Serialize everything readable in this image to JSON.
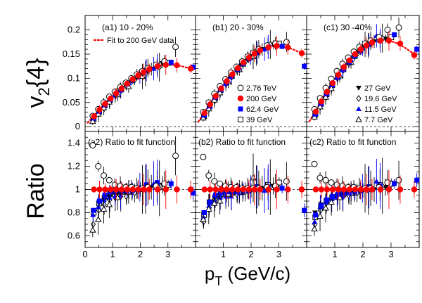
{
  "chart_data": {
    "type": "scatter",
    "x_label": "p",
    "x_label_sub": "T",
    "x_label_unit": " (GeV/c)",
    "x_range": [
      0,
      4.0
    ],
    "x_ticks": [
      0,
      1,
      2,
      3
    ],
    "top_ylabel": {
      "main": "v",
      "sub": "2",
      "tail": "{4}"
    },
    "bottom_ylabel": "Ratio",
    "top_ylim": [
      -0.01,
      0.23
    ],
    "top_yticks": [
      "0",
      "0.05",
      "0.1",
      "0.15",
      "0.2"
    ],
    "top_ytick_values": [
      0,
      0.05,
      0.1,
      0.15,
      0.2
    ],
    "bottom_ylim": [
      0.5,
      1.5
    ],
    "bottom_yticks": [
      "0.6",
      "0.8",
      "1",
      "1.2",
      "1.4"
    ],
    "bottom_ytick_values": [
      0.6,
      0.8,
      1.0,
      1.2,
      1.4
    ],
    "panels": [
      {
        "id": "a1",
        "label": "(a1) 10 - 20%",
        "row": "top",
        "col": 0,
        "fit_curve": {
          "x": [
            0.1,
            0.3,
            0.5,
            0.7,
            0.9,
            1.1,
            1.3,
            1.5,
            1.7,
            1.9,
            2.1,
            2.3,
            2.5,
            2.7,
            2.9,
            3.1,
            3.3,
            3.5,
            3.7,
            3.9
          ],
          "y": [
            0.008,
            0.022,
            0.035,
            0.047,
            0.058,
            0.069,
            0.079,
            0.089,
            0.098,
            0.106,
            0.113,
            0.119,
            0.124,
            0.127,
            0.128,
            0.128,
            0.127,
            0.125,
            0.122,
            0.119
          ]
        }
      },
      {
        "id": "b1",
        "label": "(b1) 20 - 30%",
        "row": "top",
        "col": 1,
        "fit_curve": {
          "x": [
            0.1,
            0.3,
            0.5,
            0.7,
            0.9,
            1.1,
            1.3,
            1.5,
            1.7,
            1.9,
            2.1,
            2.3,
            2.5,
            2.7,
            2.9,
            3.1,
            3.3,
            3.5,
            3.7,
            3.9
          ],
          "y": [
            0.01,
            0.028,
            0.046,
            0.063,
            0.079,
            0.094,
            0.108,
            0.121,
            0.133,
            0.143,
            0.151,
            0.158,
            0.163,
            0.166,
            0.167,
            0.166,
            0.164,
            0.16,
            0.155,
            0.15
          ]
        }
      },
      {
        "id": "c1",
        "label": "(c1) 30 -40%",
        "row": "top",
        "col": 2,
        "fit_curve": {
          "x": [
            0.1,
            0.3,
            0.5,
            0.7,
            0.9,
            1.1,
            1.3,
            1.5,
            1.7,
            1.9,
            2.1,
            2.3,
            2.5,
            2.7,
            2.9,
            3.1,
            3.3,
            3.5,
            3.7,
            3.9
          ],
          "y": [
            0.011,
            0.031,
            0.052,
            0.072,
            0.09,
            0.107,
            0.123,
            0.137,
            0.15,
            0.16,
            0.168,
            0.174,
            0.178,
            0.179,
            0.178,
            0.175,
            0.17,
            0.163,
            0.155,
            0.146
          ]
        }
      },
      {
        "id": "a2",
        "label": "(a2) Ratio to fit function",
        "row": "bottom",
        "col": 0
      },
      {
        "id": "b2",
        "label": "(b2) Ratio to fit function",
        "row": "bottom",
        "col": 1
      },
      {
        "id": "c2",
        "label": "(c2) Ratio to fit function",
        "row": "bottom",
        "col": 2
      }
    ],
    "legend_fit": "Fit to 200 GeV data",
    "legend_left": [
      {
        "name": "2.76 TeV",
        "marker": "open-circle",
        "color": "#000000"
      },
      {
        "name": "200 GeV",
        "marker": "filled-circle",
        "color": "#ff0000"
      },
      {
        "name": "62.4 GeV",
        "marker": "filled-square",
        "color": "#0000ff"
      },
      {
        "name": "39 GeV",
        "marker": "open-square",
        "color": "#000000"
      }
    ],
    "legend_right": [
      {
        "name": "27 GeV",
        "marker": "filled-triangle-down",
        "color": "#000000"
      },
      {
        "name": "19.6 GeV",
        "marker": "open-diamond",
        "color": "#000000"
      },
      {
        "name": "11.5 GeV",
        "marker": "filled-triangle-up",
        "color": "#0000ff"
      },
      {
        "name": "7.7 GeV",
        "marker": "open-triangle-up",
        "color": "#000000"
      }
    ],
    "series": [
      {
        "name": "2.76 TeV",
        "marker": "open-circle",
        "color": "#000000",
        "x": [
          0.3,
          0.5,
          0.7,
          0.9,
          1.1,
          1.3,
          1.5,
          1.7,
          1.9,
          2.1,
          2.3,
          2.6,
          2.9,
          3.3
        ]
      },
      {
        "name": "200 GeV",
        "marker": "filled-circle",
        "color": "#ff0000",
        "x": [
          0.3,
          0.5,
          0.7,
          0.9,
          1.1,
          1.3,
          1.5,
          1.7,
          1.9,
          2.1,
          2.3,
          2.6,
          2.9,
          3.3,
          3.8
        ]
      },
      {
        "name": "62.4 GeV",
        "marker": "filled-square",
        "color": "#0000ff",
        "x": [
          0.3,
          0.5,
          0.7,
          0.9,
          1.1,
          1.3,
          1.5,
          1.7,
          1.9,
          2.2,
          2.6,
          3.1,
          3.9
        ]
      },
      {
        "name": "39 GeV",
        "marker": "open-square",
        "color": "#000000",
        "x": [
          0.3,
          0.5,
          0.7,
          0.9,
          1.1,
          1.3,
          1.5,
          1.7,
          1.9,
          2.2,
          2.6,
          3.0
        ]
      },
      {
        "name": "27 GeV",
        "marker": "filled-triangle-down",
        "color": "#000000",
        "x": [
          0.3,
          0.5,
          0.7,
          0.9,
          1.1,
          1.3,
          1.5,
          1.7,
          2.0,
          2.4,
          2.8
        ]
      },
      {
        "name": "19.6 GeV",
        "marker": "open-diamond",
        "color": "#000000",
        "x": [
          0.3,
          0.5,
          0.7,
          0.9,
          1.1,
          1.3,
          1.5,
          1.8,
          2.2,
          2.7
        ]
      },
      {
        "name": "11.5 GeV",
        "marker": "filled-triangle-up",
        "color": "#0000ff",
        "x": [
          0.3,
          0.5,
          0.7,
          0.9,
          1.1,
          1.3,
          1.6,
          2.0,
          2.5
        ]
      },
      {
        "name": "7.7 GeV",
        "marker": "open-triangle-up",
        "color": "#000000",
        "x": [
          0.3,
          0.5,
          0.7,
          0.9,
          1.2,
          1.6,
          2.1
        ]
      }
    ],
    "values_top": {
      "a1": {
        "2.76 TeV": [
          0.022,
          0.036,
          0.05,
          0.062,
          0.072,
          0.082,
          0.091,
          0.1,
          0.108,
          0.115,
          0.121,
          0.128,
          0.135,
          0.165
        ],
        "200 GeV": [
          0.021,
          0.035,
          0.047,
          0.058,
          0.069,
          0.079,
          0.089,
          0.098,
          0.106,
          0.113,
          0.119,
          0.125,
          0.128,
          0.127,
          0.12
        ],
        "62.4 GeV": [
          0.018,
          0.032,
          0.045,
          0.057,
          0.068,
          0.078,
          0.088,
          0.097,
          0.106,
          0.117,
          0.126,
          0.133,
          0.123
        ],
        "39 GeV": [
          0.016,
          0.031,
          0.044,
          0.056,
          0.067,
          0.077,
          0.087,
          0.096,
          0.105,
          0.116,
          0.125,
          0.132
        ],
        "27 GeV": [
          0.017,
          0.031,
          0.043,
          0.055,
          0.066,
          0.076,
          0.086,
          0.096,
          0.108,
          0.119,
          0.131
        ],
        "19.6 GeV": [
          0.014,
          0.029,
          0.041,
          0.053,
          0.064,
          0.074,
          0.084,
          0.096,
          0.11,
          0.123
        ],
        "11.5 GeV": [
          0.016,
          0.03,
          0.043,
          0.054,
          0.065,
          0.075,
          0.09,
          0.104,
          0.12
        ],
        "7.7 GeV": [
          0.011,
          0.026,
          0.039,
          0.051,
          0.066,
          0.083,
          0.104
        ]
      },
      "b1": {
        "2.76 TeV": [
          0.03,
          0.05,
          0.068,
          0.084,
          0.098,
          0.112,
          0.124,
          0.135,
          0.145,
          0.153,
          0.16,
          0.168,
          0.172,
          0.175
        ],
        "200 GeV": [
          0.028,
          0.046,
          0.063,
          0.079,
          0.094,
          0.108,
          0.121,
          0.133,
          0.143,
          0.151,
          0.158,
          0.164,
          0.167,
          0.164,
          0.152
        ],
        "62.4 GeV": [
          0.024,
          0.043,
          0.061,
          0.077,
          0.092,
          0.106,
          0.119,
          0.131,
          0.141,
          0.153,
          0.165,
          0.166,
          0.125
        ],
        "39 GeV": [
          0.022,
          0.042,
          0.059,
          0.076,
          0.091,
          0.105,
          0.118,
          0.13,
          0.141,
          0.155,
          0.167,
          0.172
        ],
        "27 GeV": [
          0.024,
          0.042,
          0.059,
          0.075,
          0.09,
          0.104,
          0.117,
          0.129,
          0.145,
          0.16,
          0.17
        ],
        "19.6 GeV": [
          0.02,
          0.039,
          0.057,
          0.073,
          0.088,
          0.102,
          0.116,
          0.134,
          0.152,
          0.17
        ],
        "11.5 GeV": [
          0.022,
          0.041,
          0.058,
          0.074,
          0.089,
          0.103,
          0.122,
          0.143,
          0.16
        ],
        "7.7 GeV": [
          0.018,
          0.037,
          0.055,
          0.07,
          0.093,
          0.118,
          0.145
        ]
      },
      "c1": {
        "2.76 TeV": [
          0.036,
          0.059,
          0.08,
          0.099,
          0.115,
          0.13,
          0.143,
          0.155,
          0.165,
          0.172,
          0.178,
          0.185,
          0.2,
          0.205
        ],
        "200 GeV": [
          0.031,
          0.052,
          0.072,
          0.09,
          0.107,
          0.123,
          0.137,
          0.15,
          0.16,
          0.168,
          0.174,
          0.178,
          0.178,
          0.172,
          0.148
        ],
        "62.4 GeV": [
          0.026,
          0.048,
          0.068,
          0.087,
          0.104,
          0.12,
          0.134,
          0.147,
          0.158,
          0.17,
          0.178,
          0.19,
          0.16
        ],
        "39 GeV": [
          0.025,
          0.047,
          0.067,
          0.086,
          0.103,
          0.119,
          0.133,
          0.146,
          0.157,
          0.172,
          0.18,
          0.185
        ],
        "27 GeV": [
          0.027,
          0.047,
          0.066,
          0.085,
          0.102,
          0.118,
          0.132,
          0.145,
          0.162,
          0.176,
          0.182
        ],
        "19.6 GeV": [
          0.023,
          0.044,
          0.064,
          0.083,
          0.1,
          0.116,
          0.131,
          0.15,
          0.168,
          0.183
        ],
        "11.5 GeV": [
          0.025,
          0.046,
          0.066,
          0.084,
          0.101,
          0.117,
          0.138,
          0.162,
          0.188
        ],
        "7.7 GeV": [
          0.02,
          0.041,
          0.061,
          0.079,
          0.105,
          0.133,
          0.17
        ]
      }
    },
    "values_bottom": {
      "a2": {
        "2.76 TeV": [
          1.38,
          1.2,
          1.12,
          1.08,
          1.04,
          1.03,
          1.02,
          1.02,
          1.01,
          1.01,
          1.02,
          1.03,
          1.05,
          1.29
        ],
        "200 GeV": [
          1.0,
          1.0,
          1.0,
          1.0,
          1.0,
          1.0,
          1.0,
          1.0,
          1.0,
          1.0,
          1.0,
          1.0,
          1.0,
          1.0,
          1.0
        ],
        "62.4 GeV": [
          0.82,
          0.9,
          0.95,
          0.98,
          0.99,
          0.99,
          0.99,
          0.99,
          1.0,
          1.04,
          1.06,
          1.05,
          0.97
        ],
        "39 GeV": [
          0.8,
          0.88,
          0.93,
          0.96,
          0.98,
          0.98,
          0.98,
          0.98,
          0.99,
          1.02,
          1.03,
          1.04
        ],
        "27 GeV": [
          0.82,
          0.88,
          0.91,
          0.94,
          0.96,
          0.96,
          0.96,
          0.98,
          1.0,
          1.02,
          1.04
        ],
        "19.6 GeV": [
          0.7,
          0.82,
          0.87,
          0.91,
          0.93,
          0.94,
          0.94,
          0.97,
          1.0,
          1.01
        ],
        "11.5 GeV": [
          0.78,
          0.85,
          0.91,
          0.93,
          0.94,
          0.95,
          1.0,
          1.02,
          1.05
        ],
        "7.7 GeV": [
          0.65,
          0.74,
          0.83,
          0.87,
          0.93,
          0.98,
          1.0
        ]
      },
      "b2": {
        "2.76 TeV": [
          1.28,
          1.12,
          1.07,
          1.05,
          1.03,
          1.02,
          1.02,
          1.01,
          1.01,
          1.01,
          1.01,
          1.02,
          1.03,
          1.07
        ],
        "200 GeV": [
          1.0,
          1.0,
          1.0,
          1.0,
          1.0,
          1.0,
          1.0,
          1.0,
          1.0,
          1.0,
          1.0,
          1.0,
          1.0,
          1.0,
          1.0
        ],
        "62.4 GeV": [
          0.8,
          0.89,
          0.95,
          0.97,
          0.98,
          0.98,
          0.98,
          0.99,
          0.99,
          1.02,
          1.02,
          1.01,
          0.82
        ],
        "39 GeV": [
          0.78,
          0.89,
          0.93,
          0.96,
          0.97,
          0.97,
          0.98,
          0.98,
          0.99,
          1.02,
          1.04,
          1.06
        ],
        "27 GeV": [
          0.8,
          0.88,
          0.92,
          0.95,
          0.96,
          0.96,
          0.97,
          0.97,
          0.99,
          1.01,
          1.03
        ],
        "19.6 GeV": [
          0.72,
          0.84,
          0.9,
          0.93,
          0.95,
          0.95,
          0.96,
          0.98,
          1.0,
          1.02
        ],
        "11.5 GeV": [
          0.76,
          0.86,
          0.9,
          0.93,
          0.94,
          0.94,
          0.97,
          1.0,
          0.99
        ],
        "7.7 GeV": [
          0.74,
          0.83,
          0.88,
          0.9,
          0.96,
          0.98,
          1.1
        ]
      },
      "c2": {
        "2.76 TeV": [
          1.22,
          1.1,
          1.08,
          1.06,
          1.04,
          1.03,
          1.02,
          1.02,
          1.01,
          1.01,
          1.01,
          1.02,
          1.06,
          1.08
        ],
        "200 GeV": [
          1.0,
          1.0,
          1.0,
          1.0,
          1.0,
          1.0,
          1.0,
          1.0,
          1.0,
          1.0,
          1.0,
          1.0,
          1.0,
          1.0,
          1.0
        ],
        "62.4 GeV": [
          0.78,
          0.86,
          0.91,
          0.94,
          0.96,
          0.97,
          0.97,
          0.98,
          0.99,
          1.02,
          1.03,
          1.05,
          1.08
        ],
        "39 GeV": [
          0.76,
          0.85,
          0.9,
          0.93,
          0.95,
          0.96,
          0.97,
          0.97,
          0.99,
          1.02,
          1.04,
          1.05
        ],
        "27 GeV": [
          0.8,
          0.87,
          0.9,
          0.93,
          0.94,
          0.95,
          0.96,
          0.97,
          0.99,
          1.0,
          1.02
        ],
        "19.6 GeV": [
          0.7,
          0.82,
          0.88,
          0.91,
          0.93,
          0.94,
          0.95,
          0.97,
          0.99,
          1.03
        ],
        "11.5 GeV": [
          0.72,
          0.85,
          0.89,
          0.92,
          0.93,
          0.94,
          0.98,
          1.01,
          1.07
        ],
        "7.7 GeV": [
          0.66,
          0.77,
          0.84,
          0.89,
          0.93,
          0.97,
          1.01
        ]
      }
    }
  }
}
